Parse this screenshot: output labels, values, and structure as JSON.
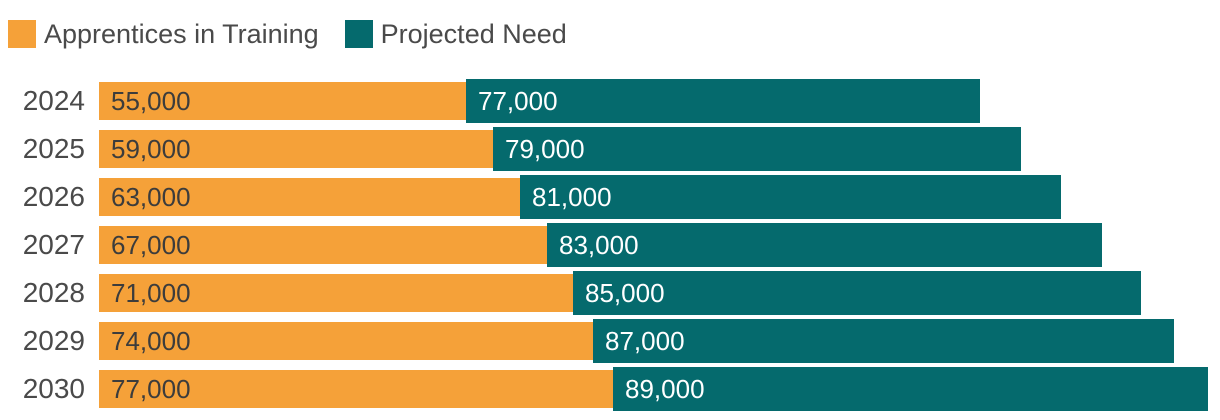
{
  "legend": {
    "items": [
      {
        "label": "Apprentices in Training",
        "color": "#f5a139"
      },
      {
        "label": "Projected Need",
        "color": "#056a6d"
      }
    ]
  },
  "chart_data": {
    "type": "bar",
    "orientation": "horizontal",
    "stacked": true,
    "title": "",
    "xlabel": "",
    "ylabel": "",
    "grid": false,
    "axis_visible": false,
    "legend_position": "top-left",
    "categories": [
      "2024",
      "2025",
      "2026",
      "2027",
      "2028",
      "2029",
      "2030"
    ],
    "series": [
      {
        "name": "Apprentices in Training",
        "color": "#f5a139",
        "label_color": "#3c3c3c",
        "values": [
          55000,
          59000,
          63000,
          67000,
          71000,
          74000,
          77000
        ],
        "value_labels": [
          "55,000",
          "59,000",
          "63,000",
          "67,000",
          "71,000",
          "74,000",
          "77,000"
        ]
      },
      {
        "name": "Projected Need",
        "color": "#056a6d",
        "label_color": "#ffffff",
        "values": [
          77000,
          79000,
          81000,
          83000,
          85000,
          87000,
          89000
        ],
        "value_labels": [
          "77,000",
          "79,000",
          "81,000",
          "83,000",
          "85,000",
          "87,000",
          "89,000"
        ]
      }
    ]
  }
}
